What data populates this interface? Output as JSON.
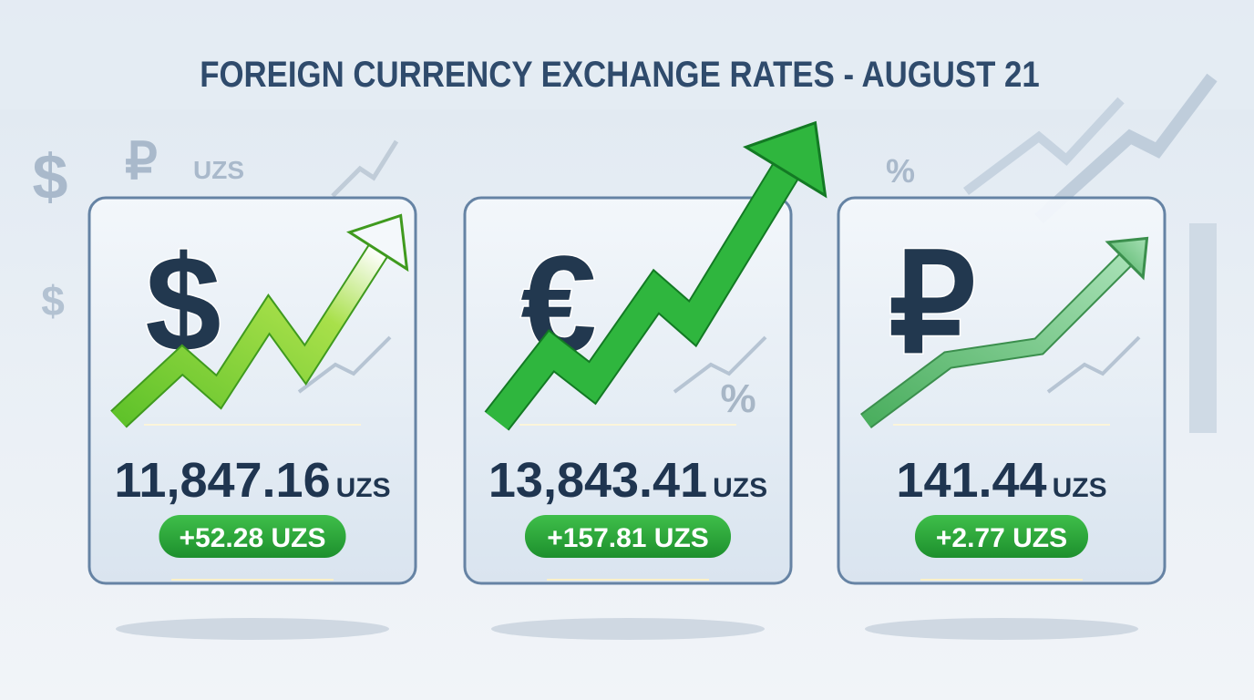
{
  "title": "FOREIGN CURRENCY EXCHANGE RATES - AUGUST 21",
  "background": {
    "symbols": [
      "$",
      "₽",
      "UZS",
      "$",
      "%"
    ]
  },
  "cards": [
    {
      "symbol": "$",
      "rate": "11,847.16",
      "unit": "UZS",
      "change": "+52.28 UZS"
    },
    {
      "symbol": "€",
      "rate": "13,843.41",
      "unit": "UZS",
      "change": "+157.81 UZS",
      "decor": "%"
    },
    {
      "symbol": "₽",
      "rate": "141.44",
      "unit": "UZS",
      "change": "+2.77 UZS"
    }
  ]
}
